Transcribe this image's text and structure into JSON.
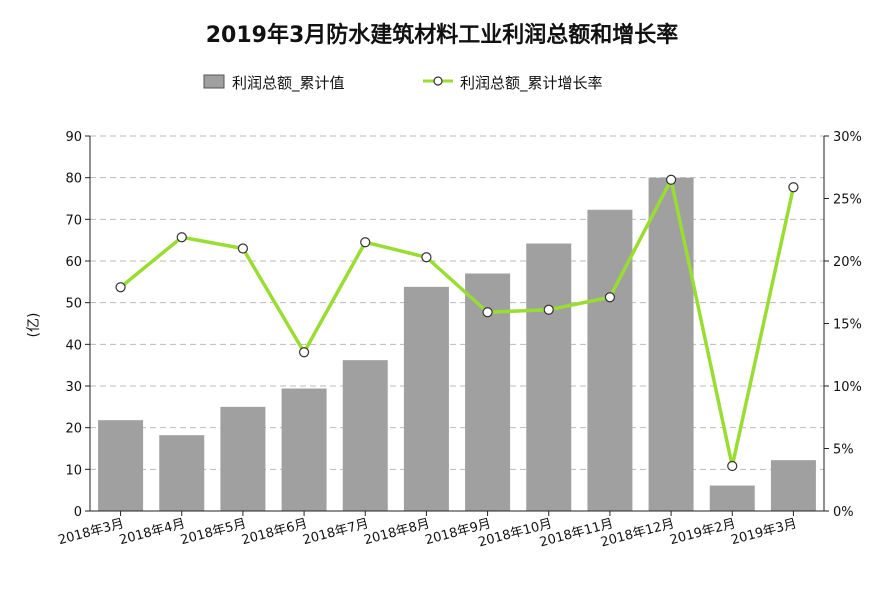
{
  "chart_data": {
    "type": "bar",
    "title": "2019年3月防水建筑材料工业利润总额和增长率",
    "ylabel": "(亿)",
    "ylim": [
      0,
      90
    ],
    "y2lim": [
      0,
      30
    ],
    "y_ticks": [
      "0",
      "10",
      "20",
      "30",
      "40",
      "50",
      "60",
      "70",
      "80",
      "90"
    ],
    "y2_ticks": [
      "0%",
      "5%",
      "10%",
      "15%",
      "20%",
      "25%",
      "30%"
    ],
    "grid": true,
    "legend_position": "top-center",
    "categories": [
      "2018年3月",
      "2018年4月",
      "2018年5月",
      "2018年6月",
      "2018年7月",
      "2018年8月",
      "2018年9月",
      "2018年10月",
      "2018年11月",
      "2018年12月",
      "2019年2月",
      "2019年3月"
    ],
    "series": [
      {
        "name": "利润总额_累计值",
        "type": "bar",
        "axis": "left",
        "color": "#a0a0a0",
        "values": [
          21.8,
          18.2,
          25.0,
          29.4,
          36.2,
          53.8,
          57.0,
          64.2,
          72.3,
          80.0,
          6.1,
          12.2
        ]
      },
      {
        "name": "利润总额_累计增长率",
        "type": "line",
        "axis": "right",
        "color": "#99dd33",
        "values": [
          17.9,
          21.9,
          21.0,
          12.7,
          21.5,
          20.3,
          15.9,
          16.1,
          17.1,
          26.5,
          3.6,
          25.9
        ]
      }
    ]
  }
}
